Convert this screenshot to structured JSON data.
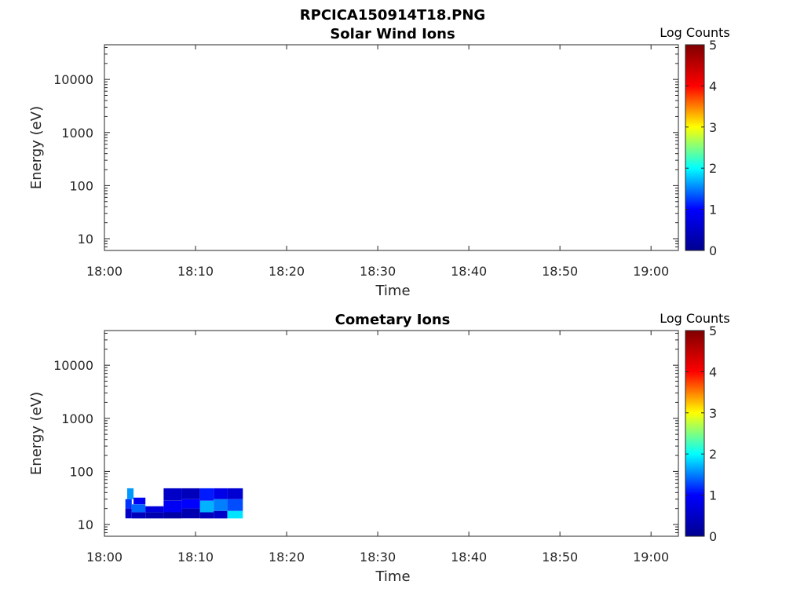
{
  "page": {
    "title": "RPCICA150914T18.PNG"
  },
  "colormap": {
    "name": "jet",
    "stops": [
      "#00008f",
      "#0000ff",
      "#00ffff",
      "#ffff00",
      "#ff0000",
      "#800000"
    ],
    "label": "Log Counts",
    "range": [
      0,
      5
    ],
    "ticks": [
      "0",
      "1",
      "2",
      "3",
      "4",
      "5"
    ]
  },
  "axis_color": "#262626",
  "chart_data": [
    {
      "type": "heatmap",
      "title": "Solar Wind Ions",
      "xlabel": "Time",
      "ylabel": "Energy (eV)",
      "x_ticks": [
        "18:00",
        "18:10",
        "18:20",
        "18:30",
        "18:40",
        "18:50",
        "19:00"
      ],
      "xlim_minutes": [
        0,
        63
      ],
      "y_ticks": [
        "10",
        "100",
        "1000",
        "10000"
      ],
      "y_scale": "log",
      "ylim": [
        6,
        45000
      ],
      "colorbar_label": "Log Counts",
      "colorbar_ticks": [
        "0",
        "1",
        "2",
        "3",
        "4",
        "5"
      ],
      "cells": []
    },
    {
      "type": "heatmap",
      "title": "Cometary Ions",
      "xlabel": "Time",
      "ylabel": "Energy (eV)",
      "x_ticks": [
        "18:00",
        "18:10",
        "18:20",
        "18:30",
        "18:40",
        "18:50",
        "19:00"
      ],
      "xlim_minutes": [
        0,
        63
      ],
      "y_ticks": [
        "10",
        "100",
        "1000",
        "10000"
      ],
      "y_scale": "log",
      "ylim": [
        6,
        45000
      ],
      "colorbar_label": "Log Counts",
      "colorbar_ticks": [
        "0",
        "1",
        "2",
        "3",
        "4",
        "5"
      ],
      "cells": [
        {
          "t0": 2.3,
          "t1": 3.0,
          "e0": 13,
          "e1": 20,
          "v": 0.5
        },
        {
          "t0": 2.3,
          "t1": 3.0,
          "e0": 20,
          "e1": 30,
          "v": 1.2
        },
        {
          "t0": 2.5,
          "t1": 3.2,
          "e0": 30,
          "e1": 48,
          "v": 1.6
        },
        {
          "t0": 3.0,
          "t1": 4.5,
          "e0": 13,
          "e1": 17,
          "v": 0.4
        },
        {
          "t0": 3.0,
          "t1": 4.5,
          "e0": 17,
          "e1": 24,
          "v": 1.4
        },
        {
          "t0": 3.2,
          "t1": 4.5,
          "e0": 24,
          "e1": 32,
          "v": 0.9
        },
        {
          "t0": 4.5,
          "t1": 6.5,
          "e0": 13,
          "e1": 17,
          "v": 0.3
        },
        {
          "t0": 4.5,
          "t1": 6.5,
          "e0": 17,
          "e1": 22,
          "v": 0.7
        },
        {
          "t0": 6.5,
          "t1": 8.5,
          "e0": 13,
          "e1": 17,
          "v": 0.2
        },
        {
          "t0": 6.5,
          "t1": 8.5,
          "e0": 17,
          "e1": 28,
          "v": 0.9
        },
        {
          "t0": 6.5,
          "t1": 8.5,
          "e0": 28,
          "e1": 48,
          "v": 0.5
        },
        {
          "t0": 8.5,
          "t1": 10.5,
          "e0": 13,
          "e1": 20,
          "v": 0.3
        },
        {
          "t0": 8.5,
          "t1": 10.5,
          "e0": 20,
          "e1": 30,
          "v": 1.0
        },
        {
          "t0": 8.5,
          "t1": 10.5,
          "e0": 30,
          "e1": 48,
          "v": 0.4
        },
        {
          "t0": 10.5,
          "t1": 12.0,
          "e0": 13,
          "e1": 17,
          "v": 0.4
        },
        {
          "t0": 10.5,
          "t1": 12.0,
          "e0": 17,
          "e1": 28,
          "v": 1.7
        },
        {
          "t0": 10.5,
          "t1": 12.0,
          "e0": 28,
          "e1": 48,
          "v": 1.1
        },
        {
          "t0": 12.0,
          "t1": 13.5,
          "e0": 13,
          "e1": 18,
          "v": 0.5
        },
        {
          "t0": 12.0,
          "t1": 13.5,
          "e0": 18,
          "e1": 30,
          "v": 1.5
        },
        {
          "t0": 12.0,
          "t1": 13.5,
          "e0": 30,
          "e1": 48,
          "v": 0.8
        },
        {
          "t0": 13.5,
          "t1": 15.2,
          "e0": 13,
          "e1": 18,
          "v": 1.9
        },
        {
          "t0": 13.5,
          "t1": 15.2,
          "e0": 18,
          "e1": 30,
          "v": 1.3
        },
        {
          "t0": 13.5,
          "t1": 15.2,
          "e0": 30,
          "e1": 48,
          "v": 0.6
        }
      ]
    }
  ]
}
